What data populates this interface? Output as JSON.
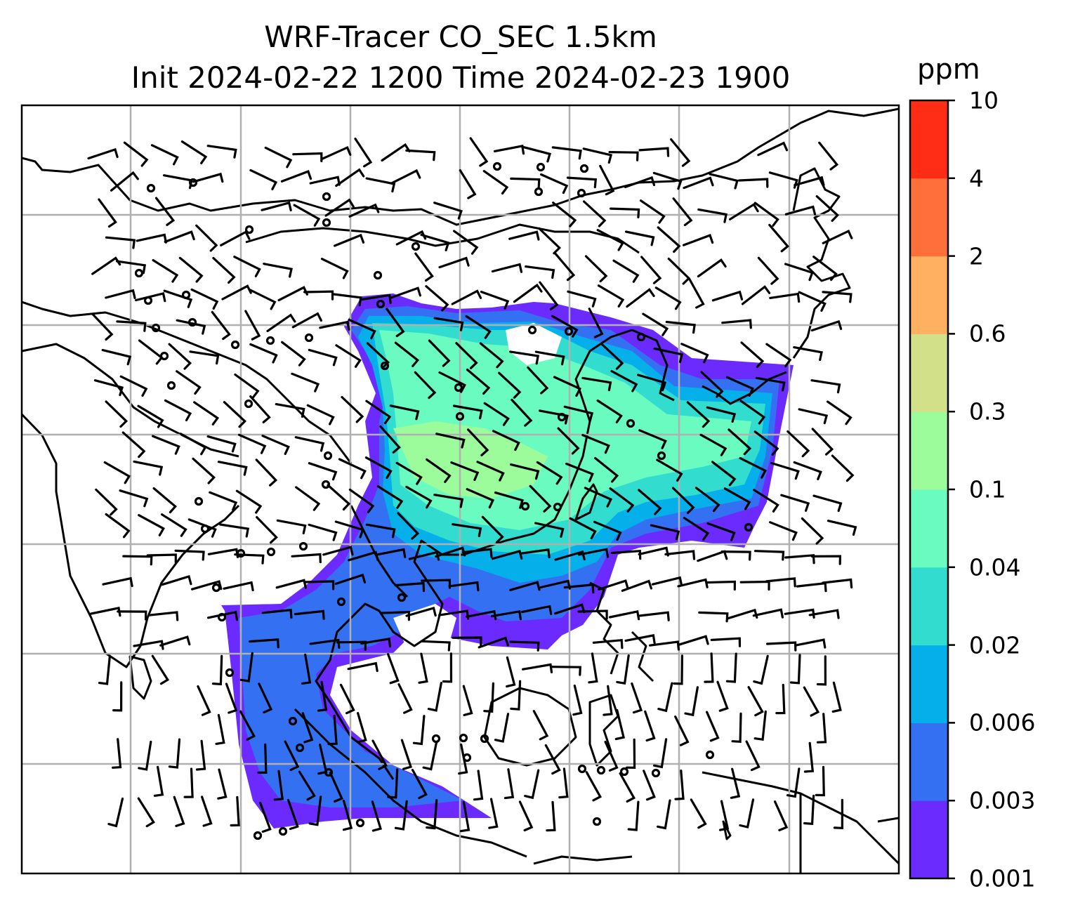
{
  "title": {
    "line1": "WRF-Tracer CO_SEC 1.5km",
    "line2": "Init 2024-02-22 1200 Time 2024-02-23 1900"
  },
  "colorbar": {
    "unit": "ppm",
    "levels": [
      "0.001",
      "0.003",
      "0.006",
      "0.02",
      "0.04",
      "0.1",
      "0.3",
      "0.6",
      "2",
      "4",
      "10"
    ],
    "colors": [
      "#6b2bff",
      "#3471f2",
      "#05b0ea",
      "#32dccf",
      "#6afbc1",
      "#9cfb9a",
      "#d2e08a",
      "#ffb061",
      "#ff6f3b",
      "#ff2d16"
    ]
  },
  "map": {
    "field": "CO_SEC tracer concentration",
    "overlay": "wind barbs",
    "gridlines": true,
    "coastlines": true,
    "borders": true
  }
}
